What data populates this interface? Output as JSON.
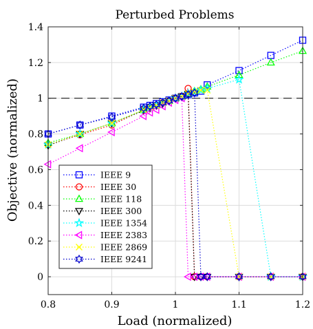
{
  "chart_data": {
    "type": "line",
    "title": "Perturbed Problems",
    "xlabel": "Load (normalized)",
    "ylabel": "Objective (normalized)",
    "xlim": [
      0.8,
      1.2
    ],
    "ylim": [
      -0.1,
      1.4
    ],
    "xticks": [
      0.8,
      0.9,
      1.0,
      1.1,
      1.2
    ],
    "xtick_labels": [
      "0.8",
      "0.9",
      "1",
      "1.1",
      "1.2"
    ],
    "yticks": [
      0,
      0.2,
      0.4,
      0.6,
      0.8,
      1.0,
      1.2,
      1.4
    ],
    "ytick_labels": [
      "0",
      "0.2",
      "0.4",
      "0.6",
      "0.8",
      "1",
      "1.2",
      "1.4"
    ],
    "grid": true,
    "legend_position": "bottom-left",
    "reference_line": {
      "y": 1,
      "style": "dashed",
      "color": "#000000"
    },
    "series": [
      {
        "name": "IEEE 9",
        "color": "#0000ff",
        "marker": "square",
        "x": [
          0.8,
          0.85,
          0.9,
          0.95,
          0.96,
          0.97,
          0.98,
          0.99,
          1.0,
          1.01,
          1.02,
          1.03,
          1.04,
          1.05,
          1.1,
          1.15,
          1.2
        ],
        "y": [
          0.8,
          0.85,
          0.9,
          0.95,
          0.96,
          0.97,
          0.98,
          0.99,
          1.0,
          1.01,
          1.02,
          1.03,
          1.04,
          1.075,
          1.155,
          1.24,
          1.325
        ]
      },
      {
        "name": "IEEE 30",
        "color": "#ff0000",
        "marker": "circle",
        "x": [
          0.8,
          0.85,
          0.9,
          0.95,
          0.96,
          0.97,
          0.98,
          0.99,
          1.0,
          1.01,
          1.02,
          1.03,
          1.04,
          1.05,
          1.1,
          1.15,
          1.2
        ],
        "y": [
          0.74,
          0.795,
          0.85,
          0.935,
          0.95,
          0.96,
          0.975,
          0.985,
          1.0,
          1.01,
          1.055,
          0,
          0,
          0,
          0,
          0,
          0
        ]
      },
      {
        "name": "IEEE 118",
        "color": "#00ff00",
        "marker": "triangle-up",
        "x": [
          0.8,
          0.85,
          0.9,
          0.95,
          0.96,
          0.97,
          0.98,
          0.99,
          1.0,
          1.01,
          1.02,
          1.03,
          1.04,
          1.05,
          1.1,
          1.15,
          1.2
        ],
        "y": [
          0.75,
          0.8,
          0.86,
          0.935,
          0.95,
          0.96,
          0.975,
          0.985,
          1.0,
          1.01,
          1.025,
          1.04,
          1.05,
          1.065,
          1.13,
          1.2,
          1.265
        ]
      },
      {
        "name": "IEEE 300",
        "color": "#000000",
        "marker": "triangle-down",
        "x": [
          0.8,
          0.85,
          0.9,
          0.95,
          0.96,
          0.97,
          0.98,
          0.99,
          1.0,
          1.01,
          1.02,
          1.03,
          1.04,
          1.05,
          1.1,
          1.15,
          1.2
        ],
        "y": [
          0.735,
          0.8,
          0.86,
          0.93,
          0.945,
          0.96,
          0.97,
          0.985,
          1.0,
          1.01,
          1.025,
          0,
          0,
          0,
          0,
          0,
          0
        ]
      },
      {
        "name": "IEEE 1354",
        "color": "#00ffff",
        "marker": "star",
        "x": [
          0.8,
          0.85,
          0.9,
          0.95,
          0.96,
          0.97,
          0.98,
          0.99,
          1.0,
          1.01,
          1.02,
          1.03,
          1.04,
          1.05,
          1.1,
          1.15,
          1.2
        ],
        "y": [
          0.74,
          0.8,
          0.86,
          0.935,
          0.95,
          0.96,
          0.975,
          0.985,
          1.0,
          1.01,
          1.025,
          1.035,
          1.045,
          1.055,
          1.105,
          0,
          0
        ]
      },
      {
        "name": "IEEE 2383",
        "color": "#ff00ff",
        "marker": "triangle-left",
        "x": [
          0.8,
          0.85,
          0.9,
          0.95,
          0.96,
          0.97,
          0.98,
          0.99,
          1.0,
          1.01,
          1.02,
          1.03,
          1.04,
          1.05,
          1.1,
          1.15,
          1.2
        ],
        "y": [
          0.63,
          0.72,
          0.81,
          0.9,
          0.92,
          0.935,
          0.955,
          0.975,
          0.99,
          1.0,
          0,
          0,
          0,
          0,
          0,
          0,
          0
        ]
      },
      {
        "name": "IEEE 2869",
        "color": "#ffff00",
        "marker": "x",
        "x": [
          0.8,
          0.85,
          0.9,
          0.95,
          0.96,
          0.97,
          0.98,
          0.99,
          1.0,
          1.01,
          1.02,
          1.03,
          1.04,
          1.05,
          1.1,
          1.15,
          1.2
        ],
        "y": [
          0.74,
          0.8,
          0.86,
          0.935,
          0.95,
          0.96,
          0.975,
          0.985,
          1.0,
          1.01,
          1.025,
          1.035,
          1.045,
          1.045,
          0,
          0,
          0
        ]
      },
      {
        "name": "IEEE 9241",
        "color": "#0000cc",
        "marker": "hexagram",
        "x": [
          0.8,
          0.85,
          0.9,
          0.95,
          0.96,
          0.97,
          0.98,
          0.99,
          1.0,
          1.01,
          1.02,
          1.03,
          1.04,
          1.05,
          1.1,
          1.15,
          1.2
        ],
        "y": [
          0.8,
          0.85,
          0.895,
          0.945,
          0.955,
          0.965,
          0.975,
          0.985,
          1.0,
          1.01,
          1.02,
          1.03,
          0,
          0,
          0,
          0,
          0
        ]
      }
    ]
  }
}
